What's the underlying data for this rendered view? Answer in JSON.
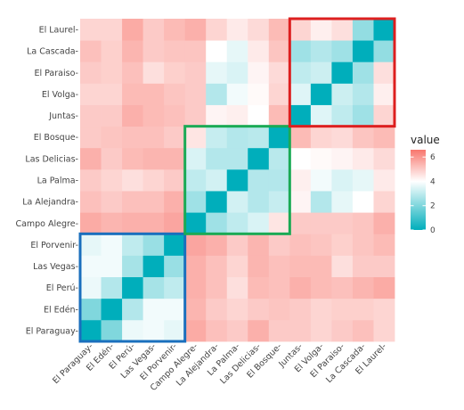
{
  "chart_data": {
    "type": "heatmap",
    "labels": [
      "El Paraguay",
      "El Edén",
      "El Perú",
      "Las Vegas",
      "El Porvenir",
      "Campo Alegre",
      "La Alejandra",
      "La Palma",
      "Las Delicias",
      "El Bosque",
      "Juntas",
      "El Volga",
      "El Paraiso",
      "La Cascada",
      "El Laurel"
    ],
    "x_tick_labels": [
      "El Paraguay-",
      "El Edén-",
      "El Perú-",
      "Las Vegas-",
      "El Porvenir-",
      "Campo Alegre-",
      "La Alejandra-",
      "La Palma-",
      "Las Delicias-",
      "El Bosque-",
      "Juntas-",
      "El Volga-",
      "El Paraiso-",
      "La Cascada-",
      "El Laurel-"
    ],
    "y_tick_labels": [
      "El Paraguay-",
      "El Edén-",
      "El Perú-",
      "Las Vegas-",
      "El Porvenir-",
      "Campo Alegre-",
      "La Alejandra-",
      "La Palma-",
      "Las Delicias-",
      "El Bosque-",
      "Juntas-",
      "El Volga-",
      "El Paraiso-",
      "La Cascada-",
      "El Laurel-"
    ],
    "values": [
      [
        0.0,
        2.0,
        3.7,
        3.8,
        3.6,
        5.6,
        5.2,
        5.0,
        5.5,
        5.0,
        5.0,
        4.8,
        5.0,
        5.2,
        4.8
      ],
      [
        2.0,
        0.0,
        2.8,
        3.8,
        3.8,
        5.4,
        5.0,
        4.8,
        5.0,
        5.1,
        5.0,
        4.8,
        4.9,
        4.9,
        4.8
      ],
      [
        3.7,
        2.8,
        0.0,
        2.6,
        3.0,
        5.5,
        5.2,
        4.6,
        5.3,
        5.2,
        5.5,
        5.3,
        5.2,
        5.4,
        5.6
      ],
      [
        3.8,
        3.8,
        2.6,
        0.0,
        2.4,
        5.5,
        5.2,
        4.8,
        5.4,
        5.2,
        5.3,
        5.3,
        4.6,
        5.0,
        5.0
      ],
      [
        3.6,
        3.8,
        3.0,
        2.4,
        0.0,
        5.7,
        5.5,
        5.0,
        5.4,
        5.0,
        5.2,
        5.1,
        4.9,
        5.1,
        5.3
      ],
      [
        5.6,
        5.4,
        5.5,
        5.5,
        5.7,
        0.0,
        2.5,
        3.0,
        3.4,
        4.5,
        5.0,
        5.0,
        5.0,
        5.1,
        5.5
      ],
      [
        5.2,
        5.0,
        5.2,
        5.2,
        5.5,
        2.5,
        0.0,
        3.3,
        2.8,
        3.1,
        4.2,
        2.8,
        3.6,
        4.0,
        4.8
      ],
      [
        5.0,
        4.8,
        4.6,
        4.8,
        5.0,
        3.0,
        3.3,
        0.0,
        2.8,
        2.8,
        4.3,
        3.8,
        3.4,
        3.6,
        4.4
      ],
      [
        5.5,
        5.0,
        5.3,
        5.4,
        5.4,
        3.4,
        2.8,
        2.8,
        0.0,
        2.9,
        4.0,
        4.1,
        4.2,
        4.4,
        4.7
      ],
      [
        5.0,
        5.1,
        5.2,
        5.2,
        5.0,
        4.5,
        3.1,
        2.8,
        2.9,
        0.0,
        5.3,
        4.8,
        4.7,
        5.1,
        5.3
      ],
      [
        5.0,
        5.0,
        5.5,
        5.3,
        5.2,
        5.0,
        4.2,
        4.3,
        4.0,
        5.3,
        0.0,
        3.5,
        3.0,
        2.5,
        4.8
      ],
      [
        4.8,
        4.8,
        5.3,
        5.3,
        5.1,
        5.0,
        2.8,
        3.8,
        4.1,
        4.8,
        3.5,
        0.0,
        3.2,
        2.8,
        4.3
      ],
      [
        5.0,
        4.9,
        5.2,
        4.6,
        4.9,
        5.0,
        3.6,
        3.4,
        4.2,
        4.7,
        3.0,
        3.2,
        0.0,
        2.5,
        4.6
      ],
      [
        5.2,
        4.9,
        5.4,
        5.0,
        5.1,
        5.1,
        4.0,
        3.6,
        4.4,
        5.1,
        2.5,
        2.8,
        2.5,
        0.0,
        2.3
      ],
      [
        4.8,
        4.8,
        5.6,
        5.0,
        5.3,
        5.5,
        4.8,
        4.4,
        4.7,
        5.3,
        4.8,
        4.3,
        4.6,
        2.3,
        0.0
      ]
    ],
    "value_range": [
      0,
      6.6
    ],
    "colorscale": {
      "low": "#00aebb",
      "mid": "#ffffff",
      "high": "#f8766d",
      "midpoint": 4
    },
    "legend": {
      "title": "value",
      "ticks": [
        0,
        2,
        4,
        6
      ],
      "placement": "right"
    },
    "cluster_boxes": [
      {
        "name": "cluster-1",
        "color": "#1a6fbd",
        "from_index": 0,
        "to_index": 4
      },
      {
        "name": "cluster-2",
        "color": "#1aaa55",
        "from_index": 5,
        "to_index": 9
      },
      {
        "name": "cluster-3",
        "color": "#dd1f1f",
        "from_index": 10,
        "to_index": 14
      }
    ],
    "grid": false
  }
}
